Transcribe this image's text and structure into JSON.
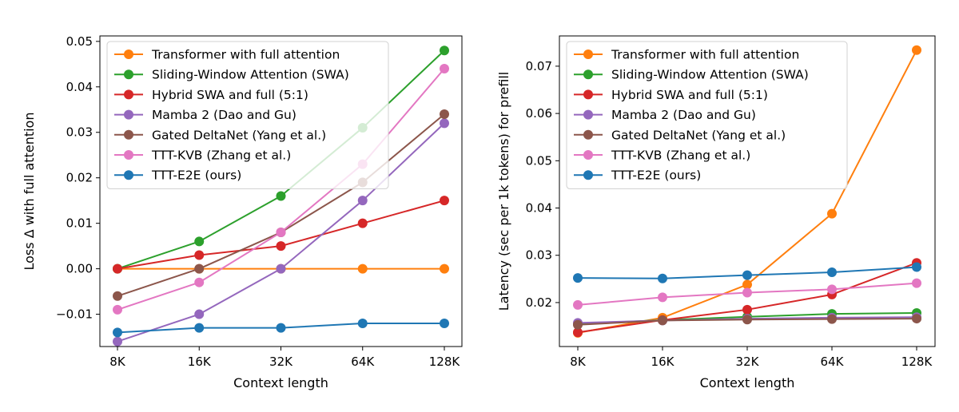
{
  "series_styles": [
    {
      "name": "Transformer with full attention",
      "color": "#ff7f0e"
    },
    {
      "name": "Sliding-Window Attention (SWA)",
      "color": "#2ca02c"
    },
    {
      "name": "Hybrid SWA and full (5:1)",
      "color": "#d62728"
    },
    {
      "name": "Mamba 2 (Dao and Gu)",
      "color": "#9467bd"
    },
    {
      "name": "Gated DeltaNet (Yang et al.)",
      "color": "#8c564b"
    },
    {
      "name": "TTT-KVB (Zhang et al.)",
      "color": "#e377c2"
    },
    {
      "name": "TTT-E2E (ours)",
      "color": "#1f77b4"
    }
  ],
  "chart_data": [
    {
      "type": "line",
      "title": "",
      "xlabel": "Context length",
      "ylabel": "Loss Δ with full attention",
      "categories": [
        "8K",
        "16K",
        "32K",
        "64K",
        "128K"
      ],
      "ylim": [
        -0.0171,
        0.0512
      ],
      "yticks": [
        -0.01,
        0.0,
        0.01,
        0.02,
        0.03,
        0.04,
        0.05
      ],
      "ytick_labels": [
        "−0.01",
        "0.00",
        "0.01",
        "0.02",
        "0.03",
        "0.04",
        "0.05"
      ],
      "legend": "top-left",
      "series": [
        {
          "name": "Transformer with full attention",
          "values": [
            0.0,
            0.0,
            0.0,
            0.0,
            0.0
          ]
        },
        {
          "name": "Sliding-Window Attention (SWA)",
          "values": [
            0.0,
            0.006,
            0.016,
            0.031,
            0.048
          ]
        },
        {
          "name": "Hybrid SWA and full (5:1)",
          "values": [
            0.0,
            0.003,
            0.005,
            0.01,
            0.015
          ]
        },
        {
          "name": "Mamba 2 (Dao and Gu)",
          "values": [
            -0.016,
            -0.01,
            0.0,
            0.015,
            0.032
          ]
        },
        {
          "name": "Gated DeltaNet (Yang et al.)",
          "values": [
            -0.006,
            0.0,
            0.008,
            0.019,
            0.034
          ]
        },
        {
          "name": "TTT-KVB (Zhang et al.)",
          "values": [
            -0.009,
            -0.003,
            0.008,
            0.023,
            0.044
          ]
        },
        {
          "name": "TTT-E2E (ours)",
          "values": [
            -0.014,
            -0.013,
            -0.013,
            -0.012,
            -0.012
          ]
        }
      ]
    },
    {
      "type": "line",
      "title": "",
      "xlabel": "Context length",
      "ylabel": "Latency (sec per 1k tokens) for prefill",
      "categories": [
        "8K",
        "16K",
        "32K",
        "64K",
        "128K"
      ],
      "ylim": [
        0.0107,
        0.0764
      ],
      "yticks": [
        0.02,
        0.03,
        0.04,
        0.05,
        0.06,
        0.07
      ],
      "ytick_labels": [
        "0.02",
        "0.03",
        "0.04",
        "0.05",
        "0.06",
        "0.07"
      ],
      "legend": "top-left",
      "series": [
        {
          "name": "Transformer with full attention",
          "values": [
            0.0136,
            0.0168,
            0.0238,
            0.0388,
            0.0734
          ]
        },
        {
          "name": "Sliding-Window Attention (SWA)",
          "values": [
            0.0155,
            0.0163,
            0.017,
            0.0176,
            0.0178
          ]
        },
        {
          "name": "Hybrid SWA and full (5:1)",
          "values": [
            0.0137,
            0.0163,
            0.0185,
            0.0217,
            0.0284
          ]
        },
        {
          "name": "Mamba 2 (Dao and Gu)",
          "values": [
            0.0157,
            0.0162,
            0.0166,
            0.0168,
            0.0169
          ]
        },
        {
          "name": "Gated DeltaNet (Yang et al.)",
          "values": [
            0.0153,
            0.0162,
            0.0164,
            0.0165,
            0.0166
          ]
        },
        {
          "name": "TTT-KVB (Zhang et al.)",
          "values": [
            0.0195,
            0.0211,
            0.0221,
            0.0228,
            0.0241
          ]
        },
        {
          "name": "TTT-E2E (ours)",
          "values": [
            0.0252,
            0.0251,
            0.0258,
            0.0264,
            0.0275
          ]
        }
      ]
    }
  ]
}
